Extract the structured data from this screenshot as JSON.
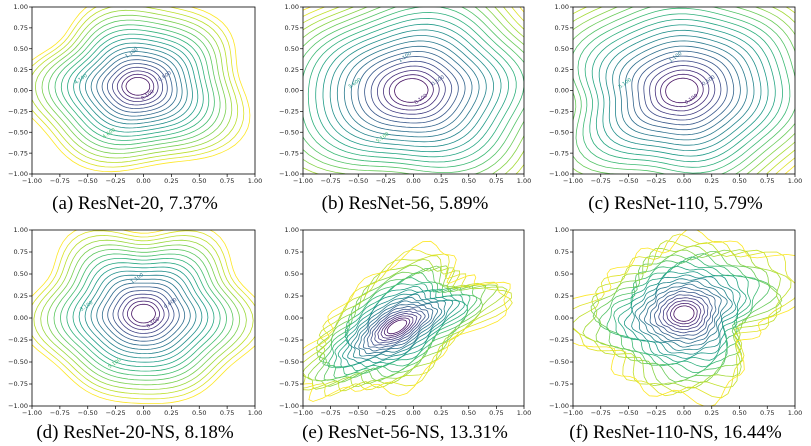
{
  "chart_data": [
    {
      "type": "contour",
      "caption": "(a) ResNet-20, 7.37%",
      "xlim": [
        -1.0,
        1.0
      ],
      "ylim": [
        -1.0,
        1.0
      ],
      "xticks": [
        "-1.00",
        "-0.75",
        "-0.50",
        "-0.25",
        "0.00",
        "0.25",
        "0.50",
        "0.75",
        "1.00"
      ],
      "yticks": [
        "1.00",
        "0.75",
        "0.50",
        "0.25",
        "0.00",
        "-0.25",
        "-0.50",
        "-0.75",
        "-1.00"
      ],
      "contour_labels": [
        "0.100",
        "0.600",
        "1.100",
        "4.100",
        "4.600"
      ],
      "colormap": "viridis"
    },
    {
      "type": "contour",
      "caption": "(b) ResNet-56, 5.89%",
      "xlim": [
        -1.0,
        1.0
      ],
      "ylim": [
        -1.0,
        1.0
      ],
      "xticks": [
        "-1.00",
        "-0.75",
        "-0.50",
        "-0.25",
        "0.00",
        "0.25",
        "0.50",
        "0.75",
        "1.00"
      ],
      "yticks": [
        "1.00",
        "0.75",
        "0.50",
        "0.25",
        "0.00",
        "-0.25",
        "-0.50",
        "-0.75",
        "-1.00"
      ],
      "contour_labels": [
        "0.100",
        "0.600",
        "1.100",
        "3.600",
        "5.100"
      ],
      "colormap": "viridis"
    },
    {
      "type": "contour",
      "caption": "(c) ResNet-110, 5.79%",
      "xlim": [
        -1.0,
        1.0
      ],
      "ylim": [
        -1.0,
        1.0
      ],
      "xticks": [
        "-1.00",
        "-0.75",
        "-0.50",
        "-0.25",
        "0.00",
        "0.25",
        "0.50",
        "0.75",
        "1.00"
      ],
      "yticks": [
        "1.00",
        "0.75",
        "0.50",
        "0.25",
        "0.00",
        "-0.25",
        "-0.50",
        "-0.75",
        "-1.00"
      ],
      "contour_labels": [
        "0.100",
        "0.600",
        "1.100",
        "5.100"
      ],
      "colormap": "viridis"
    },
    {
      "type": "contour",
      "caption": "(d) ResNet-20-NS, 8.18%",
      "xlim": [
        -1.0,
        1.0
      ],
      "ylim": [
        -1.0,
        1.0
      ],
      "xticks": [
        "-1.00",
        "-0.75",
        "-0.50",
        "-0.25",
        "0.00",
        "0.25",
        "0.50",
        "0.75",
        "1.00"
      ],
      "yticks": [
        "1.00",
        "0.75",
        "0.50",
        "0.25",
        "0.00",
        "-0.25",
        "-0.50",
        "-0.75",
        "-1.00"
      ],
      "contour_labels": [
        "0.100",
        "0.600",
        "1.100",
        "3.100",
        "5.100"
      ],
      "colormap": "viridis"
    },
    {
      "type": "contour",
      "caption": "(e) ResNet-56-NS, 13.31%",
      "xlim": [
        -1.0,
        1.0
      ],
      "ylim": [
        -1.0,
        1.0
      ],
      "xticks": [
        "-1.00",
        "-0.75",
        "-0.50",
        "-0.25",
        "0.00",
        "0.25",
        "0.50",
        "0.75",
        "1.00"
      ],
      "yticks": [
        "1.00",
        "0.75",
        "0.50",
        "0.25",
        "0.00",
        "-0.25",
        "-0.50",
        "-0.75",
        "-1.00"
      ],
      "contour_labels": [],
      "colormap": "viridis"
    },
    {
      "type": "contour",
      "caption": "(f) ResNet-110-NS, 16.44%",
      "xlim": [
        -1.0,
        1.0
      ],
      "ylim": [
        -1.0,
        1.0
      ],
      "xticks": [
        "-1.00",
        "-0.75",
        "-0.50",
        "-0.25",
        "0.00",
        "0.25",
        "0.50",
        "0.75",
        "1.00"
      ],
      "yticks": [
        "1.00",
        "0.75",
        "0.50",
        "0.25",
        "0.00",
        "-0.25",
        "-0.50",
        "-0.75",
        "-1.00"
      ],
      "contour_labels": [],
      "colormap": "viridis"
    }
  ]
}
